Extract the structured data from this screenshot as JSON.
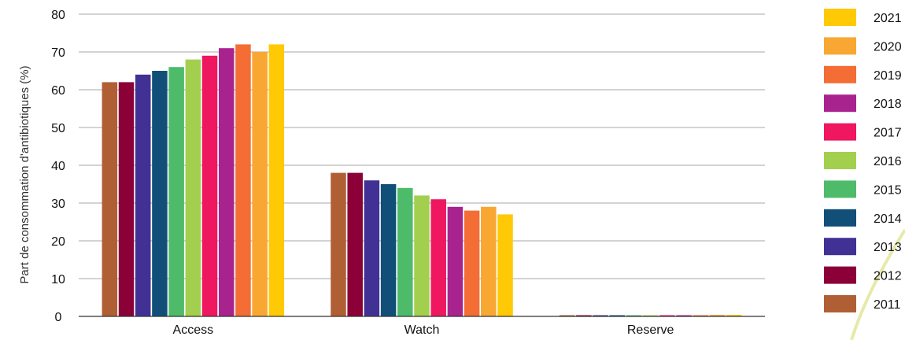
{
  "chart_data": {
    "type": "bar",
    "title": "",
    "xlabel": "",
    "ylabel": "Part de consommation d'antibiotiques (%)",
    "ylim": [
      0,
      80
    ],
    "yticks": [
      0,
      10,
      20,
      30,
      40,
      50,
      60,
      70,
      80
    ],
    "grid": true,
    "legend_position": "right",
    "categories": [
      "Access",
      "Watch",
      "Reserve"
    ],
    "series": [
      {
        "name": "2011",
        "color": "#b05f35",
        "values": [
          62,
          38,
          0.1
        ]
      },
      {
        "name": "2012",
        "color": "#8b0037",
        "values": [
          62,
          38,
          0.1
        ]
      },
      {
        "name": "2013",
        "color": "#423195",
        "values": [
          64,
          36,
          0.1
        ]
      },
      {
        "name": "2014",
        "color": "#124f78",
        "values": [
          65,
          35,
          0.2
        ]
      },
      {
        "name": "2015",
        "color": "#4dbb6a",
        "values": [
          66,
          34,
          0.2
        ]
      },
      {
        "name": "2016",
        "color": "#a3cf4f",
        "values": [
          68,
          32,
          0.2
        ]
      },
      {
        "name": "2017",
        "color": "#ee1760",
        "values": [
          69,
          31,
          0.2
        ]
      },
      {
        "name": "2018",
        "color": "#a9238f",
        "values": [
          71,
          29,
          0.3
        ]
      },
      {
        "name": "2019",
        "color": "#f36d34",
        "values": [
          72,
          28,
          0.3
        ]
      },
      {
        "name": "2020",
        "color": "#f8a733",
        "values": [
          70,
          29,
          0.4
        ]
      },
      {
        "name": "2021",
        "color": "#ffc905",
        "values": [
          72,
          27,
          0.4
        ]
      }
    ]
  }
}
